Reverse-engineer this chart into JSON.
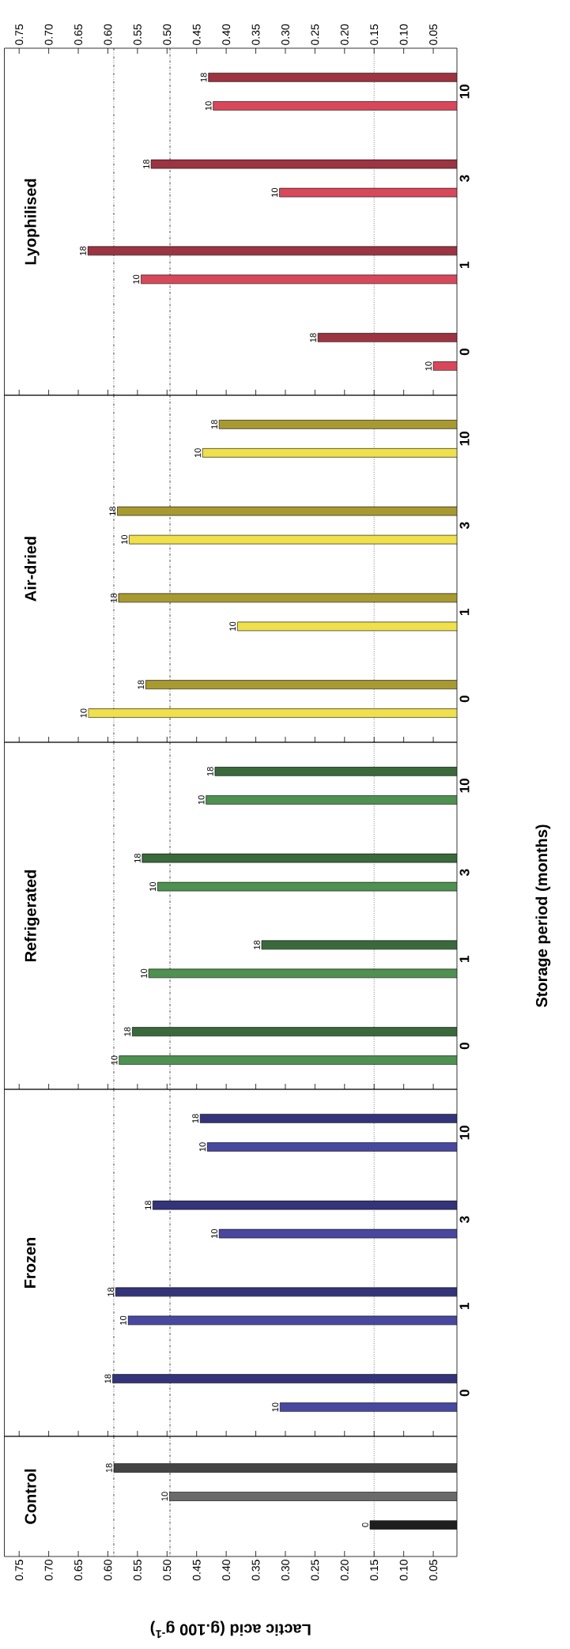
{
  "chart_data": [
    {
      "type": "bar",
      "orientation": "horizontal",
      "title": "Lyophilised",
      "categories": [
        "10",
        "3",
        "1",
        "0"
      ],
      "series": [
        {
          "name": "10",
          "color": "#d9485a",
          "values": [
            0.422,
            0.31,
            0.544,
            0.05
          ]
        },
        {
          "name": "18",
          "color": "#9c3442",
          "values": [
            0.43,
            0.527,
            0.634,
            0.245
          ]
        }
      ],
      "xlim": [
        0.775,
        0.01
      ],
      "xticks": [
        0.05,
        {
          "value": 0.1,
          "label": "0.10"
        },
        0.15,
        {
          "value": 0.2,
          "label": "0.20"
        },
        0.25,
        {
          "value": 0.3,
          "label": "0.30"
        },
        0.35,
        {
          "value": 0.4,
          "label": "0.40"
        },
        0.45,
        {
          "value": 0.5,
          "label": "0.50"
        },
        0.55,
        {
          "value": 0.6,
          "label": "0.60"
        },
        0.65,
        {
          "value": 0.7,
          "label": "0.70"
        },
        0.75
      ],
      "ref_lines": [
        {
          "axis": "x",
          "value": 0.15,
          "line_style": "dotted"
        },
        {
          "axis": "x",
          "value": 0.495,
          "line_style": "dashdot"
        },
        {
          "axis": "x",
          "value": 0.59,
          "line_style": "dashdotdot"
        }
      ]
    },
    {
      "type": "bar",
      "orientation": "horizontal",
      "title": "Air-dried",
      "categories": [
        "10",
        "3",
        "1",
        "0"
      ],
      "series": [
        {
          "name": "10",
          "color": "#efe04c",
          "values": [
            0.44,
            0.564,
            0.381,
            0.633
          ]
        },
        {
          "name": "18",
          "color": "#a89a30",
          "values": [
            0.412,
            0.584,
            0.582,
            0.536
          ]
        }
      ],
      "xlim": [
        0.775,
        0.01
      ],
      "xticks": [
        {
          "value": 0.05,
          "label": null
        },
        {
          "value": 0.1,
          "label": null
        },
        {
          "value": 0.15,
          "label": null
        },
        {
          "value": 0.2,
          "label": null
        },
        {
          "value": 0.25,
          "label": null
        },
        {
          "value": 0.3,
          "label": null
        },
        {
          "value": 0.35,
          "label": null
        },
        {
          "value": 0.4,
          "label": null
        },
        {
          "value": 0.45,
          "label": null
        },
        {
          "value": 0.5,
          "label": null
        },
        {
          "value": 0.55,
          "label": null
        },
        {
          "value": 0.6,
          "label": null
        },
        {
          "value": 0.65,
          "label": null
        },
        {
          "value": 0.7,
          "label": null
        },
        {
          "value": 0.75,
          "label": null
        }
      ],
      "tick_labels": "y",
      "ref_lines": [
        {
          "axis": "x",
          "value": 0.15,
          "line_style": "dotted"
        },
        {
          "axis": "x",
          "value": 0.495,
          "line_style": "dashdot"
        },
        {
          "axis": "x",
          "value": 0.59,
          "line_style": "dashdotdot"
        }
      ]
    },
    {
      "type": "bar",
      "orientation": "horizontal",
      "title": "Refrigerated",
      "ylabel": "Storage period (months)",
      "categories": [
        "10",
        "3",
        "1",
        "0"
      ],
      "series": [
        {
          "name": "10",
          "color": "#4f9150",
          "values": [
            0.434,
            0.516,
            0.531,
            0.581
          ]
        },
        {
          "name": "18",
          "color": "#3a6a3c",
          "values": [
            0.419,
            0.542,
            0.34,
            0.559
          ]
        }
      ],
      "xlim": [
        0.775,
        0.01
      ],
      "xticks": [
        {
          "value": 0.05,
          "label": null
        },
        {
          "value": 0.1,
          "label": null
        },
        {
          "value": 0.15,
          "label": null
        },
        {
          "value": 0.2,
          "label": null
        },
        {
          "value": 0.25,
          "label": null
        },
        {
          "value": 0.3,
          "label": null
        },
        {
          "value": 0.35,
          "label": null
        },
        {
          "value": 0.4,
          "label": null
        },
        {
          "value": 0.45,
          "label": null
        },
        {
          "value": 0.5,
          "label": null
        },
        {
          "value": 0.55,
          "label": null
        },
        {
          "value": 0.6,
          "label": null
        },
        {
          "value": 0.65,
          "label": null
        },
        {
          "value": 0.7,
          "label": null
        },
        {
          "value": 0.75,
          "label": null
        }
      ],
      "tick_labels": "y",
      "ref_lines": [
        {
          "axis": "x",
          "value": 0.15,
          "line_style": "dotted"
        },
        {
          "axis": "x",
          "value": 0.495,
          "line_style": "dashdot"
        },
        {
          "axis": "x",
          "value": 0.59,
          "line_style": "dashdotdot"
        }
      ]
    },
    {
      "type": "bar",
      "orientation": "horizontal",
      "title": "Frozen",
      "categories": [
        "10",
        "3",
        "1",
        "0"
      ],
      "series": [
        {
          "name": "10",
          "color": "#4848a0",
          "values": [
            0.432,
            0.412,
            0.566,
            0.309
          ]
        },
        {
          "name": "18",
          "color": "#34347a",
          "values": [
            0.444,
            0.524,
            0.587,
            0.592
          ]
        }
      ],
      "xlim": [
        0.775,
        0.01
      ],
      "xticks": [
        {
          "value": 0.05,
          "label": null
        },
        {
          "value": 0.1,
          "label": null
        },
        {
          "value": 0.15,
          "label": null
        },
        {
          "value": 0.2,
          "label": null
        },
        {
          "value": 0.25,
          "label": null
        },
        {
          "value": 0.3,
          "label": null
        },
        {
          "value": 0.35,
          "label": null
        },
        {
          "value": 0.4,
          "label": null
        },
        {
          "value": 0.45,
          "label": null
        },
        {
          "value": 0.5,
          "label": null
        },
        {
          "value": 0.55,
          "label": null
        },
        {
          "value": 0.6,
          "label": null
        },
        {
          "value": 0.65,
          "label": null
        },
        {
          "value": 0.7,
          "label": null
        },
        {
          "value": 0.75,
          "label": null
        }
      ],
      "tick_labels": "y",
      "ref_lines": [
        {
          "axis": "x",
          "value": 0.15,
          "line_style": "dotted"
        },
        {
          "axis": "x",
          "value": 0.495,
          "line_style": "dashdot"
        },
        {
          "axis": "x",
          "value": 0.59,
          "line_style": "dashdotdot"
        }
      ]
    },
    {
      "type": "bar",
      "orientation": "horizontal",
      "title": "Control",
      "xlabel": "Lactic acid (g.100 g$^{-1}$)",
      "categories": [
        null
      ],
      "series": [
        {
          "name": "0",
          "color": "#1e1e1e",
          "values": [
            0.157
          ]
        },
        {
          "name": "10",
          "color": "#6a6a6a",
          "values": [
            0.496
          ]
        },
        {
          "name": "18",
          "color": "#444444",
          "values": [
            0.59
          ]
        }
      ],
      "xlim": [
        0.775,
        0.01
      ],
      "xticks": [
        0.05,
        {
          "value": 0.1,
          "label": "0.10"
        },
        0.15,
        {
          "value": 0.2,
          "label": "0.20"
        },
        0.25,
        {
          "value": 0.3,
          "label": "0.30"
        },
        0.35,
        {
          "value": 0.4,
          "label": "0.40"
        },
        0.45,
        {
          "value": 0.5,
          "label": "0.50"
        },
        0.55,
        {
          "value": 0.6,
          "label": "0.60"
        },
        0.65,
        {
          "value": 0.7,
          "label": "0.70"
        },
        0.75
      ],
      "tick_labels": "x",
      "ref_lines": [
        {
          "axis": "x",
          "value": 0.15,
          "line_style": "dotted"
        },
        {
          "axis": "x",
          "value": 0.495,
          "line_style": "dashdot"
        },
        {
          "axis": "x",
          "value": 0.59,
          "line_style": "dashdotdot"
        }
      ]
    }
  ]
}
